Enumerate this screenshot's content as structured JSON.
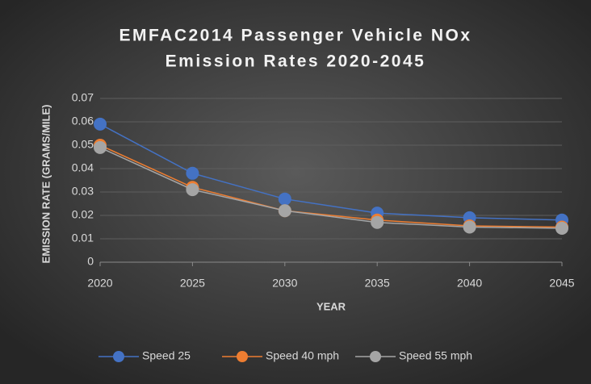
{
  "chart_data": {
    "type": "line",
    "title": [
      "EMFAC2014 Passenger Vehicle NOx",
      "Emission Rates 2020-2045"
    ],
    "x_label": "YEAR",
    "y_label": "EMISSION RATE (GRAMS/MILE)",
    "x": [
      2020,
      2025,
      2030,
      2035,
      2040,
      2045
    ],
    "xlim": [
      2020,
      2045
    ],
    "xticks": [
      2020,
      2025,
      2030,
      2035,
      2040,
      2045
    ],
    "ylim": [
      0,
      0.07
    ],
    "yticks": [
      0,
      0.01,
      0.02,
      0.03,
      0.04,
      0.05,
      0.06,
      0.07
    ],
    "grid": true,
    "legend": "bottom",
    "series": [
      {
        "name": "Speed 25",
        "color": "#4472c4",
        "values": [
          0.059,
          0.038,
          0.027,
          0.021,
          0.019,
          0.018
        ]
      },
      {
        "name": "Speed 40 mph",
        "color": "#ed7d31",
        "values": [
          0.05,
          0.032,
          0.022,
          0.018,
          0.0155,
          0.015
        ]
      },
      {
        "name": "Speed 55 mph",
        "color": "#a5a5a5",
        "values": [
          0.049,
          0.031,
          0.022,
          0.017,
          0.015,
          0.0145
        ]
      }
    ]
  }
}
